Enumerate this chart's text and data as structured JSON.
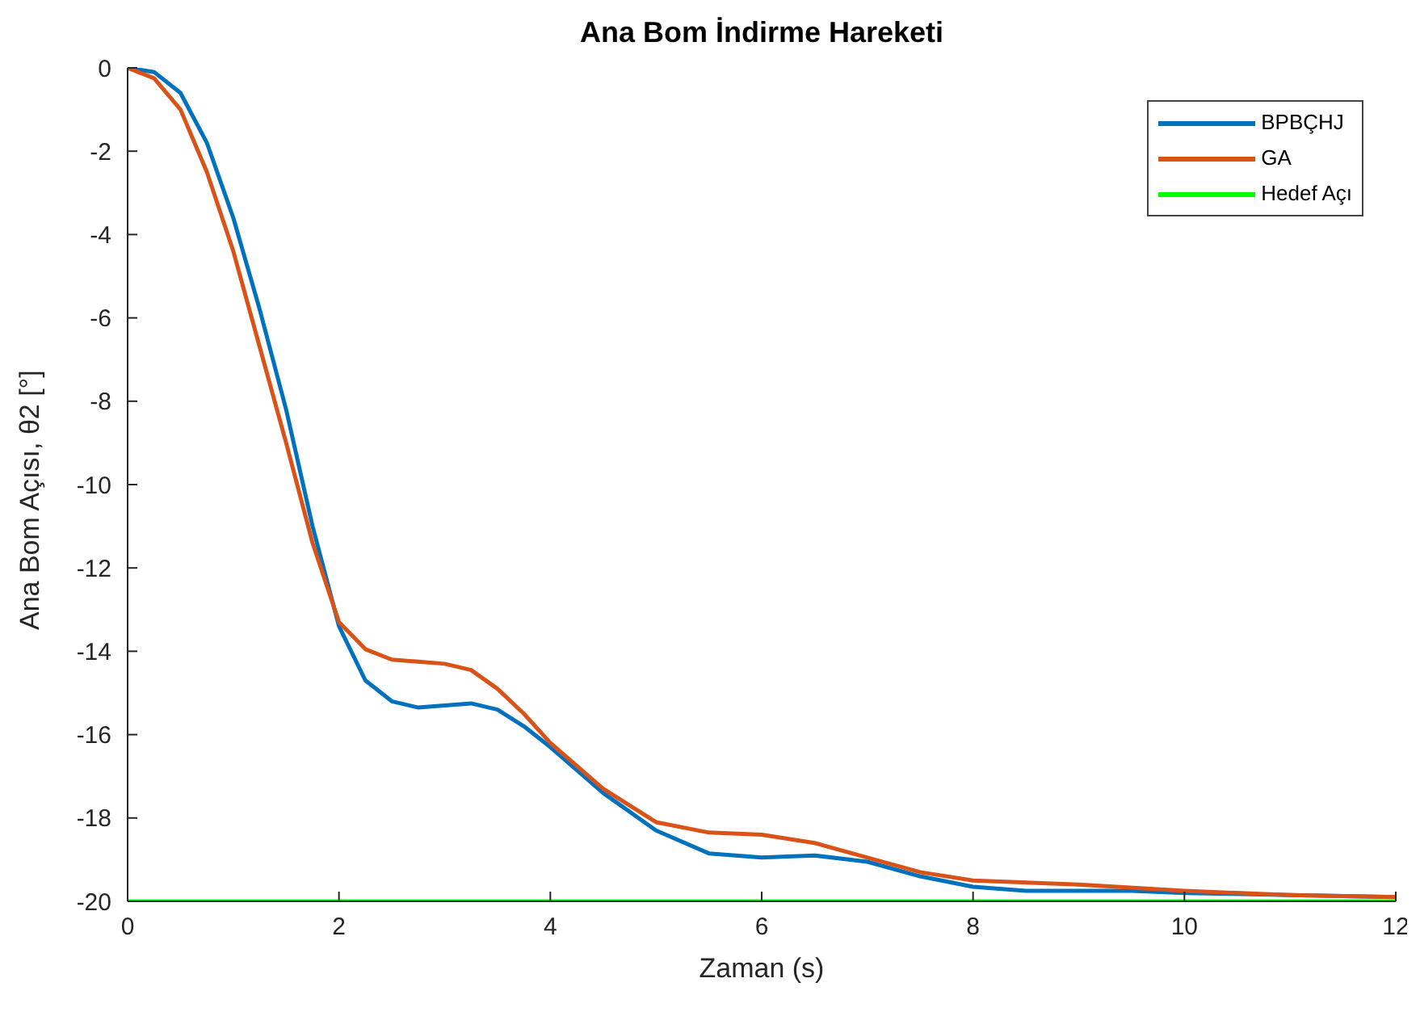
{
  "chart_data": {
    "type": "line",
    "title": "Ana Bom İndirme Hareketi",
    "xlabel": "Zaman (s)",
    "ylabel": "Ana Bom Açısı, θ2 [°]",
    "xlim": [
      0,
      12
    ],
    "xticks": [
      0,
      2,
      4,
      6,
      8,
      10,
      12
    ],
    "ylim": [
      -20,
      0
    ],
    "yticks": [
      -20,
      -18,
      -16,
      -14,
      -12,
      -10,
      -8,
      -6,
      -4,
      -2,
      0
    ],
    "grid": false,
    "legend": "top right",
    "series": [
      {
        "name": "BPBÇHJ",
        "color": "#0072bd",
        "x": [
          0,
          0.25,
          0.5,
          0.75,
          1,
          1.25,
          1.5,
          1.75,
          2,
          2.25,
          2.5,
          2.75,
          3,
          3.25,
          3.5,
          3.75,
          4,
          4.5,
          5,
          5.5,
          6,
          6.5,
          7,
          7.5,
          8,
          8.5,
          9,
          9.5,
          10,
          11,
          12
        ],
        "values": [
          0,
          -0.1,
          -0.6,
          -1.8,
          -3.6,
          -5.8,
          -8.2,
          -11.0,
          -13.4,
          -14.7,
          -15.2,
          -15.35,
          -15.3,
          -15.25,
          -15.4,
          -15.8,
          -16.3,
          -17.4,
          -18.3,
          -18.85,
          -18.95,
          -18.9,
          -19.05,
          -19.4,
          -19.65,
          -19.75,
          -19.75,
          -19.75,
          -19.8,
          -19.85,
          -19.9
        ]
      },
      {
        "name": "GA",
        "color": "#d95319",
        "x": [
          0,
          0.25,
          0.5,
          0.75,
          1,
          1.25,
          1.5,
          1.75,
          2,
          2.25,
          2.5,
          2.75,
          3,
          3.25,
          3.5,
          3.75,
          4,
          4.5,
          5,
          5.5,
          6,
          6.5,
          7,
          7.5,
          8,
          9,
          10,
          11,
          12
        ],
        "values": [
          0,
          -0.25,
          -1.0,
          -2.5,
          -4.4,
          -6.7,
          -9.0,
          -11.4,
          -13.3,
          -13.95,
          -14.2,
          -14.25,
          -14.3,
          -14.45,
          -14.9,
          -15.5,
          -16.2,
          -17.3,
          -18.1,
          -18.35,
          -18.4,
          -18.6,
          -18.95,
          -19.3,
          -19.5,
          -19.6,
          -19.75,
          -19.85,
          -19.9
        ]
      },
      {
        "name": "Hedef Açı",
        "color": "#00ff00",
        "x": [
          0,
          12
        ],
        "values": [
          -20,
          -20
        ]
      }
    ]
  }
}
